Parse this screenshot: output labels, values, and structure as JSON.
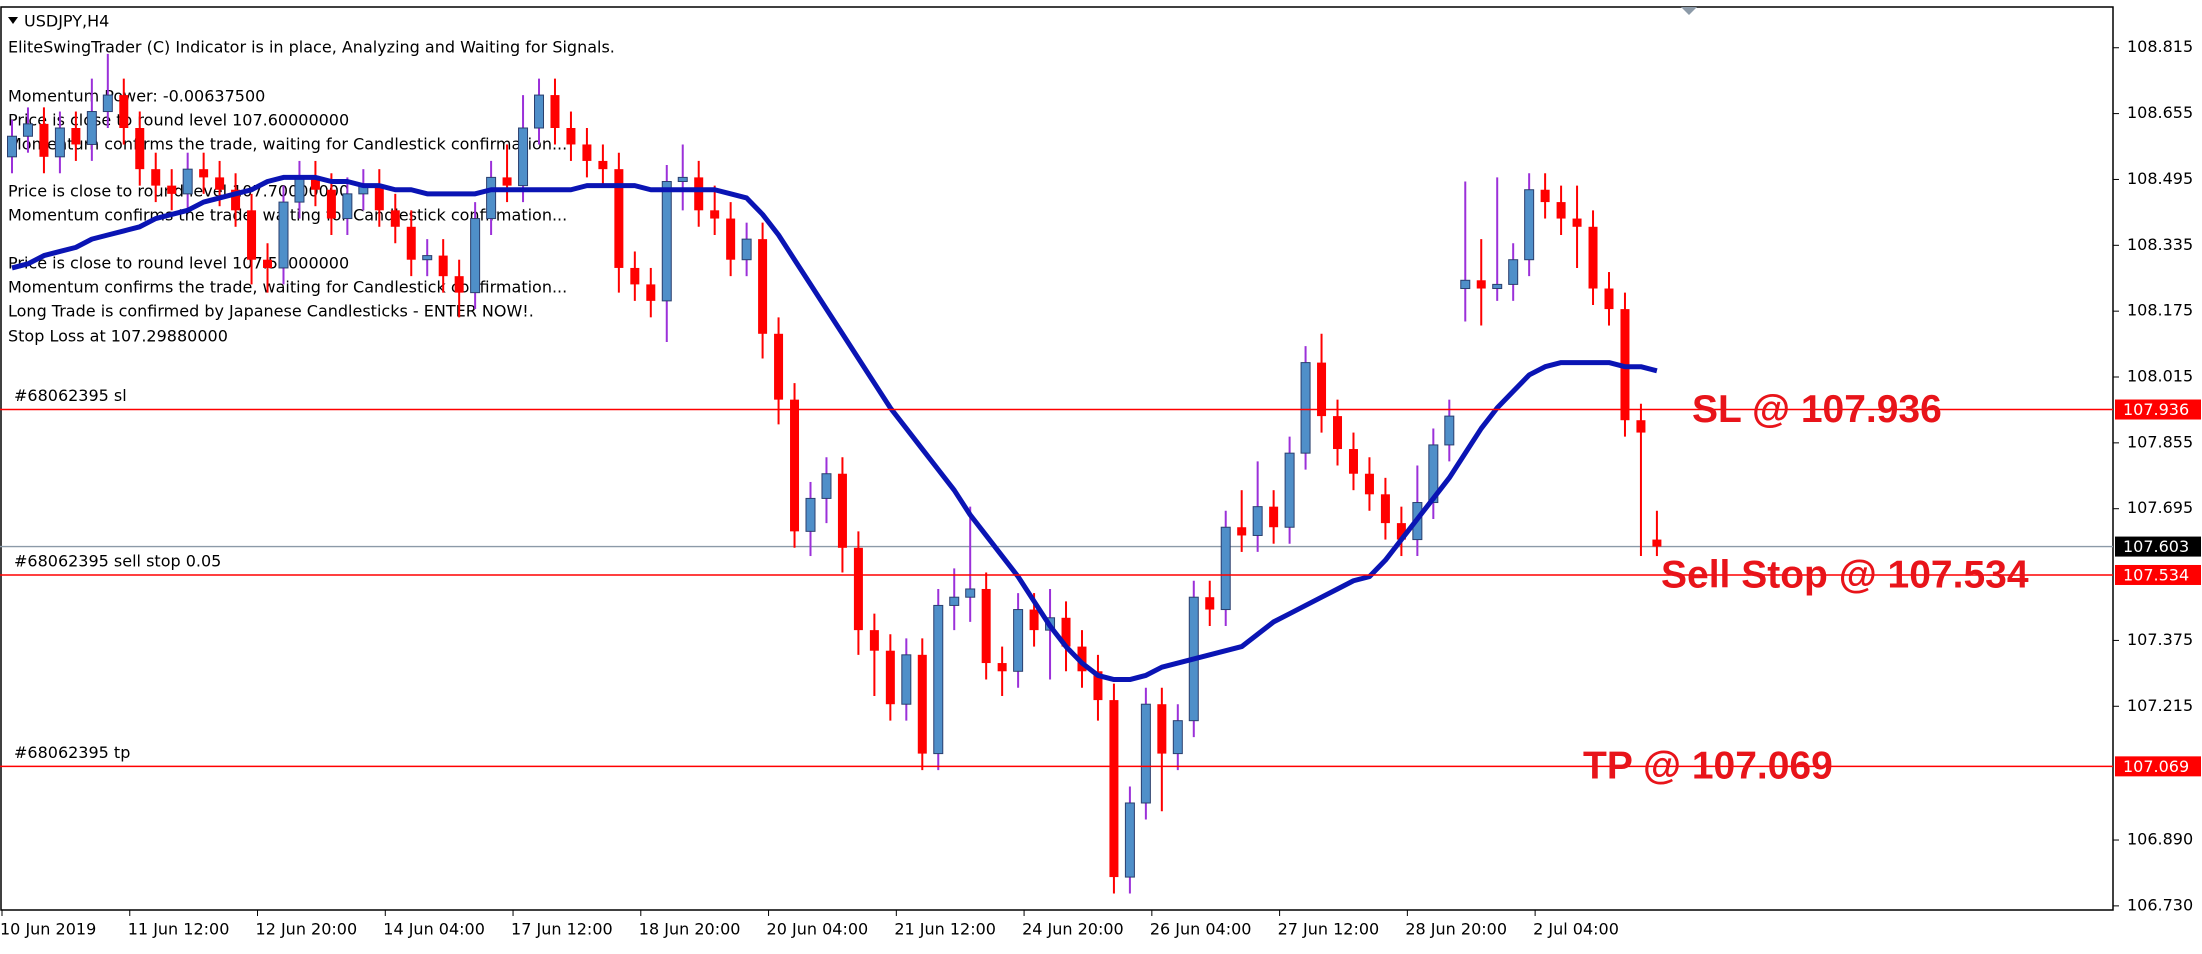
{
  "chart_data": {
    "type": "candlestick",
    "symbol": "USDJPY,H4",
    "info_lines": [
      "EliteSwingTrader (C) Indicator is in place, Analyzing and Waiting for Signals.",
      "Momentum Power: -0.00637500",
      "Price is close to round level 107.60000000",
      "Momentum confirms the trade, waiting for Candlestick confirmation...",
      "Price is close to round level 107.70000000",
      "Momentum confirms the trade, waiting for Candlestick confirmation...",
      "Price is close to round level 107.50000000",
      "Momentum confirms the trade, waiting for Candlestick confirmation...",
      "Long Trade is confirmed by Japanese Candlesticks - ENTER NOW!.",
      "Stop Loss at 107.29880000"
    ],
    "categories": [
      "10 Jun 2019",
      null,
      null,
      null,
      null,
      null,
      null,
      null,
      "11 Jun 12:00",
      null,
      null,
      null,
      null,
      null,
      null,
      null,
      "12 Jun 20:00",
      null,
      null,
      null,
      null,
      null,
      null,
      null,
      "14 Jun 04:00",
      null,
      null,
      null,
      null,
      null,
      null,
      null,
      "17 Jun 12:00",
      null,
      null,
      null,
      null,
      null,
      null,
      null,
      "18 Jun 20:00",
      null,
      null,
      null,
      null,
      null,
      null,
      null,
      "20 Jun 04:00",
      null,
      null,
      null,
      null,
      null,
      null,
      null,
      "21 Jun 12:00",
      null,
      null,
      null,
      null,
      null,
      null,
      null,
      "24 Jun 20:00",
      null,
      null,
      null,
      null,
      null,
      null,
      null,
      "26 Jun 04:00",
      null,
      null,
      null,
      null,
      null,
      null,
      null,
      "27 Jun 12:00",
      null,
      null,
      null,
      null,
      null,
      null,
      null,
      "28 Jun 20:00",
      null,
      null,
      null,
      null,
      null,
      null,
      null,
      "2 Jul 04:00",
      null,
      null,
      null,
      null,
      null,
      null,
      null
    ],
    "open": [
      108.55,
      108.6,
      108.63,
      108.55,
      108.62,
      108.58,
      108.66,
      108.7,
      108.62,
      108.52,
      108.48,
      108.46,
      108.52,
      108.5,
      108.47,
      108.42,
      108.3,
      108.28,
      108.44,
      108.5,
      108.47,
      108.4,
      108.46,
      108.48,
      108.42,
      108.38,
      108.3,
      108.31,
      108.26,
      108.22,
      108.4,
      108.5,
      108.48,
      108.62,
      108.7,
      108.62,
      108.58,
      108.54,
      108.52,
      108.28,
      108.24,
      108.2,
      108.49,
      108.5,
      108.42,
      108.4,
      108.3,
      108.35,
      108.12,
      107.96,
      107.64,
      107.72,
      107.78,
      107.6,
      107.4,
      107.35,
      107.22,
      107.34,
      107.1,
      107.46,
      107.48,
      107.5,
      107.32,
      107.3,
      107.45,
      107.4,
      107.43,
      107.36,
      107.3,
      107.23,
      106.8,
      106.98,
      107.22,
      107.1,
      107.18,
      107.48,
      107.45,
      107.65,
      107.63,
      107.7,
      107.65,
      107.83,
      108.05,
      107.92,
      107.84,
      107.78,
      107.73,
      107.66,
      107.62,
      107.71,
      107.85,
      108.23,
      108.25,
      108.23,
      108.24,
      108.3,
      108.47,
      108.44,
      108.4,
      108.38,
      108.23,
      108.18,
      107.91,
      107.62
    ],
    "high": [
      108.64,
      108.67,
      108.67,
      108.66,
      108.66,
      108.74,
      108.8,
      108.74,
      108.66,
      108.56,
      108.52,
      108.56,
      108.56,
      108.54,
      108.51,
      108.46,
      108.34,
      108.48,
      108.54,
      108.54,
      108.51,
      108.5,
      108.52,
      108.52,
      108.46,
      108.42,
      108.35,
      108.35,
      108.3,
      108.44,
      108.54,
      108.58,
      108.7,
      108.74,
      108.74,
      108.66,
      108.62,
      108.58,
      108.56,
      108.32,
      108.28,
      108.53,
      108.58,
      108.54,
      108.48,
      108.44,
      108.39,
      108.39,
      108.16,
      108.0,
      107.76,
      107.82,
      107.82,
      107.64,
      107.44,
      107.39,
      107.38,
      107.38,
      107.5,
      107.55,
      107.7,
      107.54,
      107.36,
      107.49,
      107.49,
      107.5,
      107.47,
      107.4,
      107.34,
      107.27,
      107.02,
      107.26,
      107.26,
      107.22,
      107.52,
      107.52,
      107.69,
      107.74,
      107.81,
      107.74,
      107.87,
      108.09,
      108.12,
      107.96,
      107.88,
      107.82,
      107.77,
      107.7,
      107.8,
      107.89,
      107.96,
      108.49,
      108.35,
      108.5,
      108.34,
      108.51,
      108.51,
      108.48,
      108.48,
      108.42,
      108.27,
      108.22,
      107.95,
      107.69
    ],
    "low": [
      108.51,
      108.56,
      108.51,
      108.51,
      108.54,
      108.54,
      108.62,
      108.58,
      108.48,
      108.44,
      108.42,
      108.42,
      108.46,
      108.43,
      108.38,
      108.24,
      108.22,
      108.24,
      108.4,
      108.43,
      108.36,
      108.36,
      108.42,
      108.38,
      108.34,
      108.26,
      108.26,
      108.22,
      108.16,
      108.18,
      108.36,
      108.44,
      108.44,
      108.58,
      108.58,
      108.54,
      108.5,
      108.48,
      108.22,
      108.2,
      108.16,
      108.1,
      108.42,
      108.38,
      108.36,
      108.26,
      108.26,
      108.06,
      107.9,
      107.6,
      107.58,
      107.66,
      107.54,
      107.34,
      107.24,
      107.18,
      107.18,
      107.06,
      107.06,
      107.4,
      107.42,
      107.28,
      107.24,
      107.26,
      107.36,
      107.28,
      107.3,
      107.26,
      107.18,
      106.76,
      106.76,
      106.94,
      106.96,
      107.06,
      107.14,
      107.41,
      107.41,
      107.59,
      107.59,
      107.61,
      107.61,
      107.79,
      107.88,
      107.8,
      107.74,
      107.69,
      107.62,
      107.58,
      107.58,
      107.67,
      107.81,
      108.15,
      108.14,
      108.2,
      108.2,
      108.26,
      108.4,
      108.36,
      108.28,
      108.19,
      108.14,
      107.87,
      107.58,
      107.58
    ],
    "close": [
      108.6,
      108.63,
      108.55,
      108.62,
      108.58,
      108.66,
      108.7,
      108.62,
      108.52,
      108.48,
      108.46,
      108.52,
      108.5,
      108.47,
      108.42,
      108.3,
      108.28,
      108.44,
      108.5,
      108.47,
      108.4,
      108.46,
      108.48,
      108.42,
      108.38,
      108.3,
      108.31,
      108.26,
      108.22,
      108.4,
      108.5,
      108.48,
      108.62,
      108.7,
      108.62,
      108.58,
      108.54,
      108.52,
      108.28,
      108.24,
      108.2,
      108.49,
      108.5,
      108.42,
      108.4,
      108.3,
      108.35,
      108.12,
      107.96,
      107.64,
      107.72,
      107.78,
      107.6,
      107.4,
      107.35,
      107.22,
      107.34,
      107.1,
      107.46,
      107.48,
      107.5,
      107.32,
      107.3,
      107.45,
      107.4,
      107.43,
      107.36,
      107.3,
      107.23,
      106.8,
      106.98,
      107.22,
      107.1,
      107.18,
      107.48,
      107.45,
      107.65,
      107.63,
      107.7,
      107.65,
      107.83,
      108.05,
      107.92,
      107.84,
      107.78,
      107.73,
      107.66,
      107.62,
      107.71,
      107.85,
      107.92,
      108.25,
      108.23,
      108.24,
      108.3,
      108.47,
      108.44,
      108.4,
      108.38,
      108.23,
      108.18,
      107.91,
      107.88,
      107.603
    ],
    "up_color": "#4f8fc9",
    "up_wick_color": "#9b30d9",
    "down_color": "#ff0000",
    "ma": {
      "color": "#0a14b4",
      "values": [
        108.28,
        108.29,
        108.31,
        108.32,
        108.33,
        108.35,
        108.36,
        108.37,
        108.38,
        108.4,
        108.41,
        108.42,
        108.44,
        108.45,
        108.46,
        108.47,
        108.49,
        108.5,
        108.5,
        108.5,
        108.49,
        108.49,
        108.48,
        108.48,
        108.47,
        108.47,
        108.46,
        108.46,
        108.46,
        108.46,
        108.47,
        108.47,
        108.47,
        108.47,
        108.47,
        108.47,
        108.48,
        108.48,
        108.48,
        108.48,
        108.47,
        108.47,
        108.47,
        108.47,
        108.47,
        108.46,
        108.45,
        108.41,
        108.36,
        108.3,
        108.24,
        108.18,
        108.12,
        108.06,
        108.0,
        107.94,
        107.89,
        107.84,
        107.79,
        107.74,
        107.68,
        107.63,
        107.58,
        107.53,
        107.47,
        107.41,
        107.36,
        107.32,
        107.29,
        107.28,
        107.28,
        107.29,
        107.31,
        107.32,
        107.33,
        107.34,
        107.35,
        107.36,
        107.39,
        107.42,
        107.44,
        107.46,
        107.48,
        107.5,
        107.52,
        107.53,
        107.57,
        107.62,
        107.67,
        107.72,
        107.77,
        107.83,
        107.89,
        107.94,
        107.98,
        108.02,
        108.04,
        108.05,
        108.05,
        108.05,
        108.05,
        108.04,
        108.04,
        108.03
      ]
    },
    "levels": [
      {
        "value": 107.936,
        "order_label": "#68062395 sl",
        "annotation": "SL @ 107.936",
        "color": "#ff0000"
      },
      {
        "value": 107.534,
        "order_label": "#68062395 sell stop 0.05",
        "annotation": "Sell Stop @ 107.534",
        "color": "#ff0000"
      },
      {
        "value": 107.069,
        "order_label": "#68062395 tp",
        "annotation": "TP @ 107.069",
        "color": "#ff0000"
      }
    ],
    "current_price": {
      "value": 107.603,
      "color": "#8c9aa8"
    },
    "ylim": [
      106.72,
      108.914
    ],
    "yticks": [
      108.815,
      108.655,
      108.495,
      108.335,
      108.175,
      108.015,
      107.855,
      107.695,
      107.375,
      107.215,
      {
        "value": 106.89,
        "label": "106.890"
      },
      {
        "value": 106.73,
        "label": "106.730"
      }
    ]
  }
}
